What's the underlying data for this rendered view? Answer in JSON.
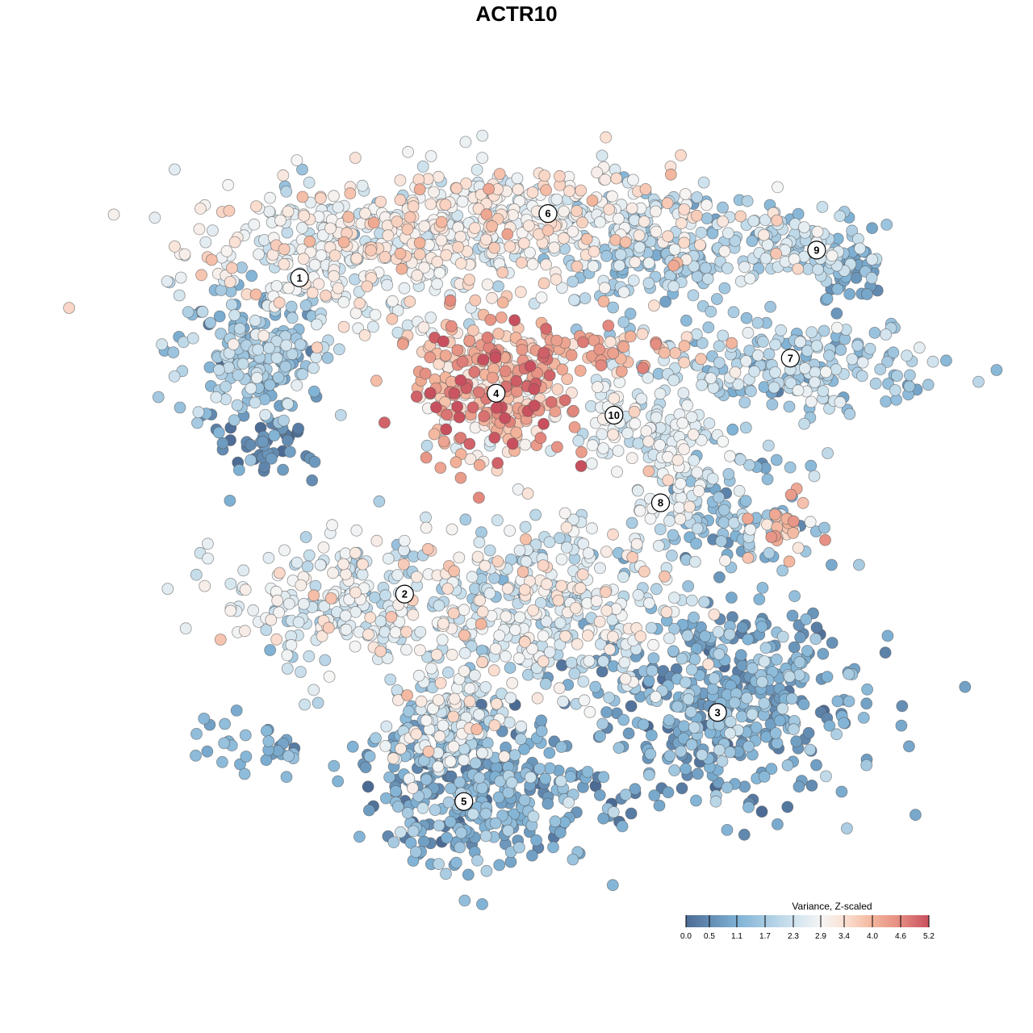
{
  "chart_data": {
    "type": "scatter",
    "title": "ACTR10",
    "xlabel": "",
    "ylabel": "",
    "xlim": [
      0,
      100
    ],
    "ylim": [
      0,
      100
    ],
    "grid": false,
    "legend": {
      "title": "Variance, Z-scaled",
      "placement": "bottom-right",
      "ticks": [
        "0.0",
        "0.5",
        "1.1",
        "1.7",
        "2.3",
        "2.9",
        "3.4",
        "4.0",
        "4.6",
        "5.2"
      ],
      "range": [
        0,
        5.2
      ],
      "colors": {
        "0.0": "#4c6b94",
        "1.1": "#7fb2d5",
        "2.3": "#cfe3ee",
        "2.9": "#f5f5f5",
        "3.4": "#fbe0d3",
        "4.0": "#f3b49b",
        "4.6": "#e48a7f",
        "5.2": "#c8505e"
      }
    },
    "cluster_labels": [
      {
        "label": "1",
        "x": 18.4,
        "y": 82.4
      },
      {
        "label": "2",
        "x": 32.4,
        "y": 39.1
      },
      {
        "label": "3",
        "x": 74.1,
        "y": 22.9
      },
      {
        "label": "4",
        "x": 44.6,
        "y": 66.6
      },
      {
        "label": "5",
        "x": 40.3,
        "y": 10.7
      },
      {
        "label": "6",
        "x": 51.5,
        "y": 91.2
      },
      {
        "label": "7",
        "x": 83.8,
        "y": 71.4
      },
      {
        "label": "8",
        "x": 66.5,
        "y": 51.6
      },
      {
        "label": "9",
        "x": 87.3,
        "y": 86.2
      },
      {
        "label": "10",
        "x": 60.3,
        "y": 63.6
      }
    ],
    "point_groups": [
      {
        "x": 25,
        "y": 86,
        "sx": 11,
        "sy": 5,
        "n": 330,
        "value": 2.8,
        "sd": 0.5
      },
      {
        "x": 12,
        "y": 72,
        "sx": 5,
        "sy": 5,
        "n": 200,
        "value": 1.5,
        "sd": 0.5
      },
      {
        "x": 14,
        "y": 59,
        "sx": 3,
        "sy": 2,
        "n": 40,
        "value": 0.4,
        "sd": 0.3
      },
      {
        "x": 48,
        "y": 90,
        "sx": 13,
        "sy": 4,
        "n": 380,
        "value": 2.9,
        "sd": 0.5
      },
      {
        "x": 65,
        "y": 85,
        "sx": 6,
        "sy": 4,
        "n": 150,
        "value": 1.6,
        "sd": 0.4
      },
      {
        "x": 84,
        "y": 87,
        "sx": 6,
        "sy": 3,
        "n": 110,
        "value": 2.1,
        "sd": 0.5
      },
      {
        "x": 92,
        "y": 84,
        "sx": 2,
        "sy": 3,
        "n": 40,
        "value": 1.0,
        "sd": 0.4
      },
      {
        "x": 84,
        "y": 70,
        "sx": 10,
        "sy": 3,
        "n": 200,
        "value": 1.8,
        "sd": 0.5
      },
      {
        "x": 56,
        "y": 72,
        "sx": 8,
        "sy": 2,
        "n": 80,
        "value": 3.9,
        "sd": 0.5
      },
      {
        "x": 44,
        "y": 67,
        "sx": 5,
        "sy": 5,
        "n": 300,
        "value": 3.9,
        "sd": 0.8
      },
      {
        "x": 60,
        "y": 64,
        "sx": 2,
        "sy": 3,
        "n": 40,
        "value": 2.7,
        "sd": 0.3
      },
      {
        "x": 68,
        "y": 58,
        "sx": 3,
        "sy": 5,
        "n": 110,
        "value": 2.5,
        "sd": 0.4
      },
      {
        "x": 77,
        "y": 50,
        "sx": 5,
        "sy": 4,
        "n": 100,
        "value": 1.5,
        "sd": 0.5
      },
      {
        "x": 83,
        "y": 48,
        "sx": 2,
        "sy": 2,
        "n": 30,
        "value": 3.8,
        "sd": 0.4
      },
      {
        "x": 22,
        "y": 38,
        "sx": 7,
        "sy": 5,
        "n": 200,
        "value": 2.5,
        "sd": 0.5
      },
      {
        "x": 50,
        "y": 38,
        "sx": 10,
        "sy": 6,
        "n": 400,
        "value": 2.5,
        "sd": 0.6
      },
      {
        "x": 75,
        "y": 24,
        "sx": 9,
        "sy": 7,
        "n": 450,
        "value": 1.0,
        "sd": 0.5
      },
      {
        "x": 42,
        "y": 12,
        "sx": 8,
        "sy": 5,
        "n": 350,
        "value": 1.0,
        "sd": 0.5
      },
      {
        "x": 38,
        "y": 22,
        "sx": 4,
        "sy": 4,
        "n": 150,
        "value": 2.3,
        "sd": 0.6
      },
      {
        "x": 12,
        "y": 18,
        "sx": 5,
        "sy": 2,
        "n": 30,
        "value": 1.0,
        "sd": 0.4
      }
    ]
  }
}
